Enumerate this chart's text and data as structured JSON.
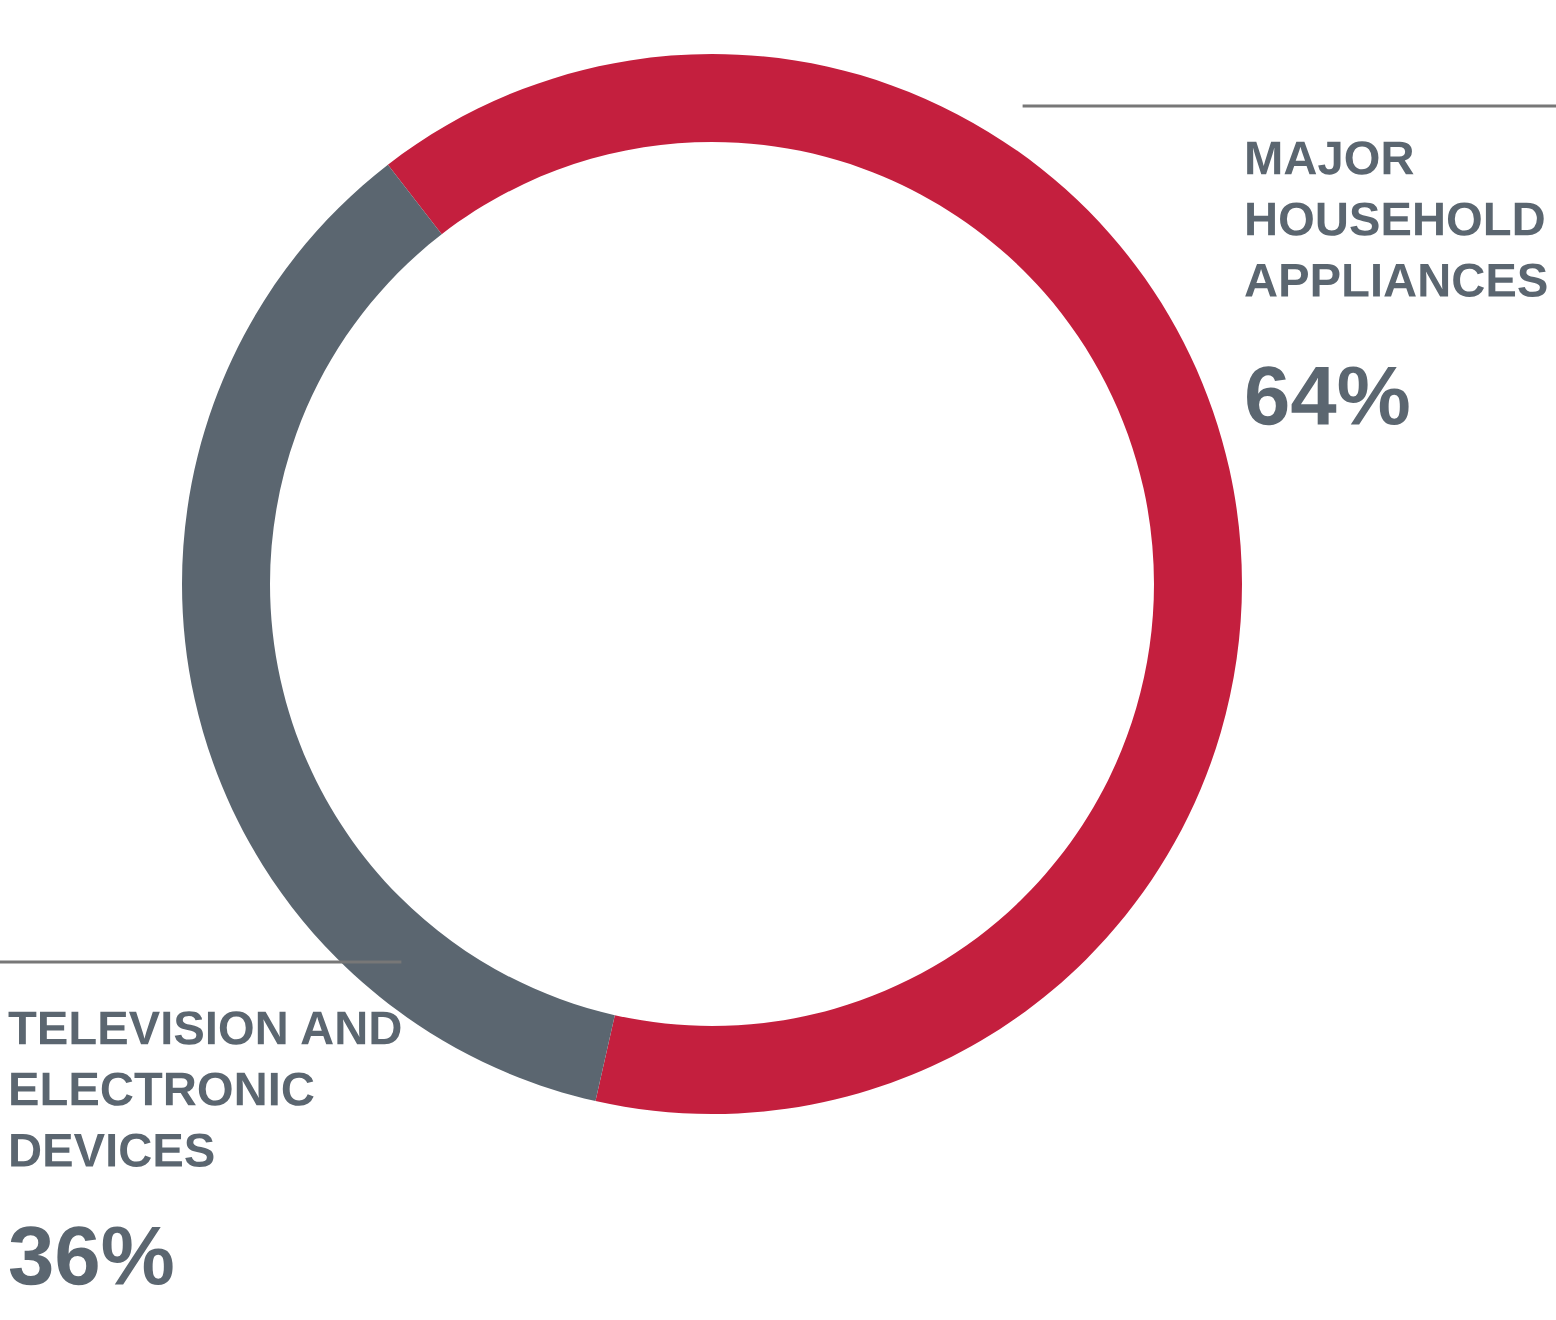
{
  "chart_data": {
    "type": "donut",
    "categories": [
      "MAJOR\nHOUSEHOLD\nAPPLIANCES",
      "TELEVISION AND\nELECTRONIC\nDEVICES"
    ],
    "values": [
      64,
      36
    ],
    "colors": [
      "#c41f3e",
      "#5b6670"
    ],
    "value_labels": [
      "64%",
      "36%"
    ],
    "legend": false
  }
}
